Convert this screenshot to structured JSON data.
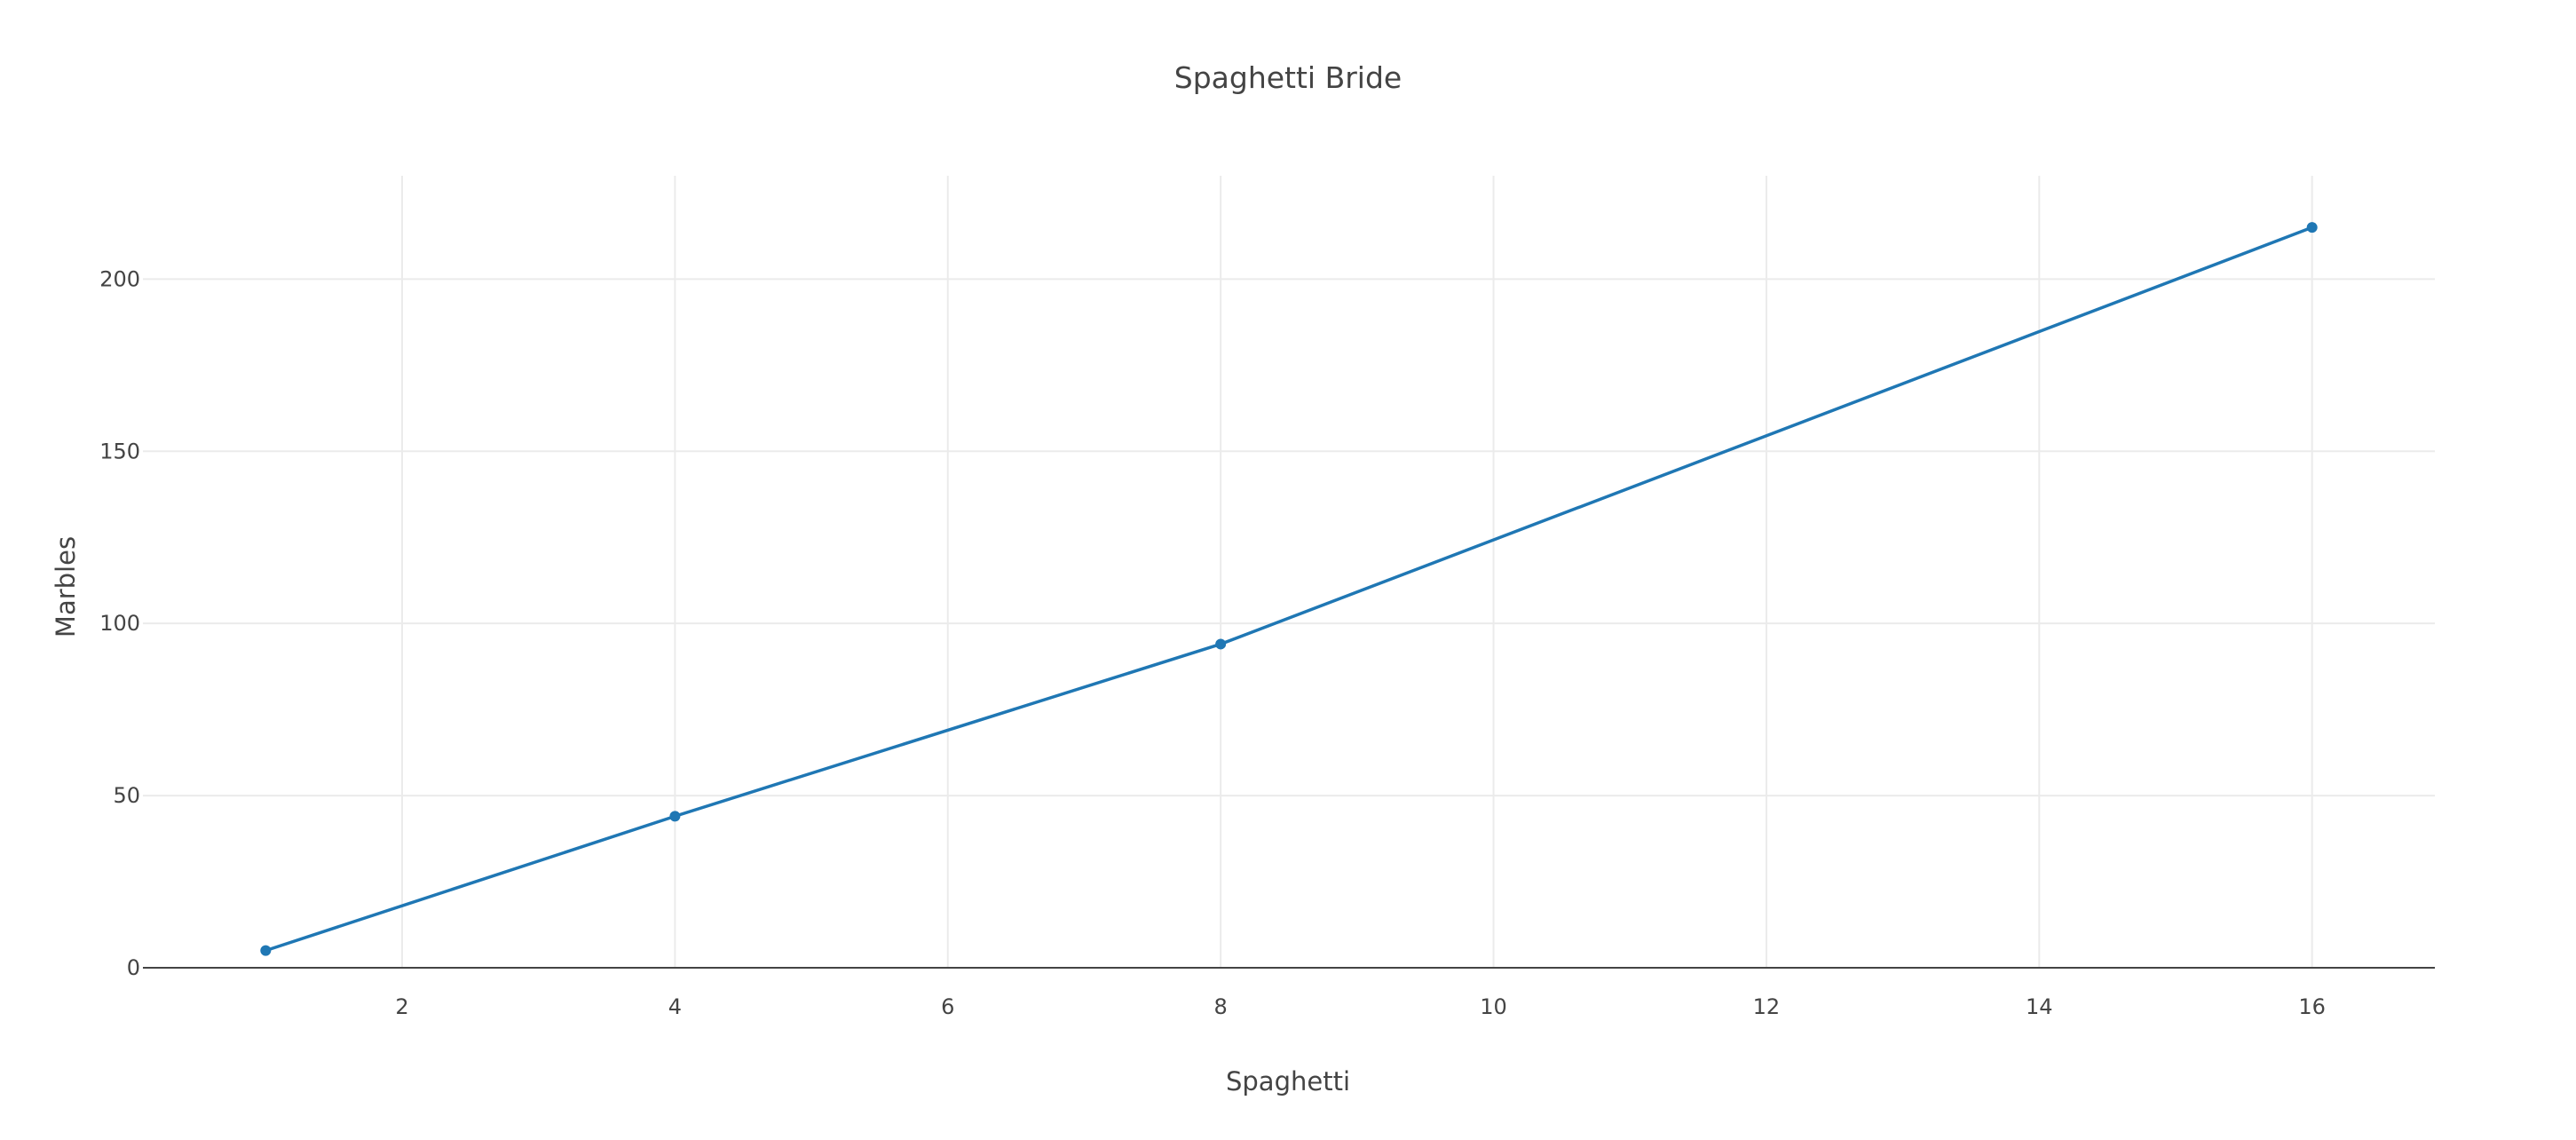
{
  "chart_data": {
    "type": "line",
    "title": "Spaghetti Bride",
    "xlabel": "Spaghetti",
    "ylabel": "Marbles",
    "x": [
      1,
      4,
      8,
      16
    ],
    "series": [
      {
        "values": [
          5,
          44,
          94,
          215
        ]
      }
    ],
    "xlim": [
      0.1,
      16.9
    ],
    "ylim": [
      0,
      230
    ],
    "xticks": [
      2,
      4,
      6,
      8,
      10,
      12,
      14,
      16
    ],
    "yticks": [
      0,
      50,
      100,
      150,
      200
    ],
    "grid": true,
    "legend": "none",
    "colors": {
      "series": "#1f77b4",
      "grid": "#ebebeb",
      "zero_line": "#444444",
      "text": "#444444"
    }
  }
}
